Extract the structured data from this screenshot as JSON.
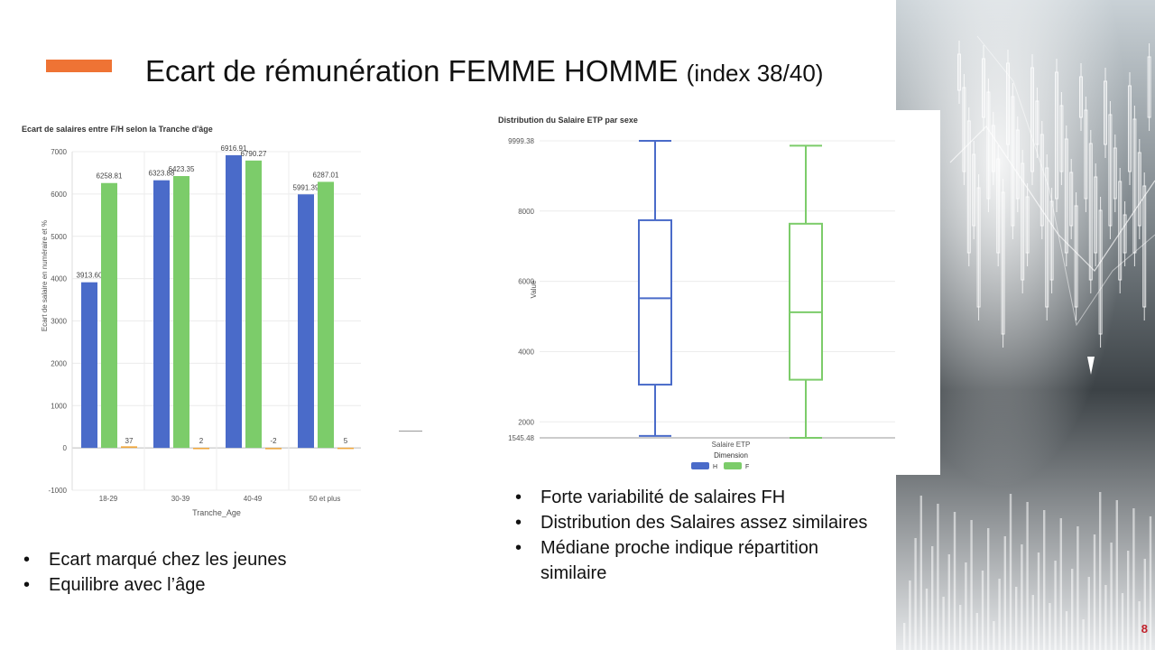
{
  "slide": {
    "title_main": "Ecart de rémunération FEMME HOMME",
    "title_sub": "(index 38/40)",
    "page_number": "8",
    "accent_color": "#ef7334"
  },
  "left_bullets": [
    "Ecart marqué chez les jeunes",
    "Equilibre avec l’âge"
  ],
  "right_bullets": [
    "Forte variabilité de salaires FH",
    "Distribution des Salaires assez similaires",
    "Médiane proche indique répartition similaire"
  ],
  "chart_data": [
    {
      "type": "bar",
      "title": "Ecart de salaires entre F/H selon la Tranche d'âge",
      "xlabel": "Tranche_Age",
      "ylabel": "Ecart de salaire en numéraire et %",
      "categories": [
        "18-29",
        "30-39",
        "40-49",
        "50 et plus"
      ],
      "series": [
        {
          "values": [
            3913.6,
            6323.88,
            6916.91,
            5991.39
          ],
          "labels": [
            "3913.60",
            "6323.88",
            "6916.91",
            "5991.39"
          ],
          "color": "#4a6bc9"
        },
        {
          "values": [
            6258.81,
            6423.35,
            6790.27,
            6287.01
          ],
          "labels": [
            "6258.81",
            "6423.35",
            "6790.27",
            "6287.01"
          ],
          "color": "#7ccc6a"
        },
        {
          "values": [
            37,
            2,
            -2,
            5
          ],
          "labels": [
            "37",
            "2",
            "-2",
            "5"
          ],
          "color": "#f0a63a"
        }
      ],
      "ylim": [
        -1000,
        7000
      ],
      "yticks": [
        "-1000",
        "0",
        "1000",
        "2000",
        "3000",
        "4000",
        "5000",
        "6000",
        "7000"
      ],
      "grid": true
    },
    {
      "type": "box",
      "title": "Distribution du Salaire ETP par sexe",
      "ylabel": "Value",
      "xlabel": "Salaire ETP",
      "legend_title": "Dimension",
      "legend_position": "bottom",
      "ylim": [
        1545.48,
        9999.38
      ],
      "yticks": [
        "1545.48",
        "2000",
        "4000",
        "6000",
        "8000",
        "9999.38"
      ],
      "boxes": [
        {
          "name": "H",
          "min": 1600,
          "q1": 3060,
          "median": 5520,
          "q3": 7740,
          "max": 9999.38,
          "color": "#4a6bc9"
        },
        {
          "name": "F",
          "min": 1545.48,
          "q1": 3200,
          "median": 5120,
          "q3": 7640,
          "max": 9860,
          "color": "#7ccc6a"
        }
      ],
      "grid": true
    }
  ]
}
